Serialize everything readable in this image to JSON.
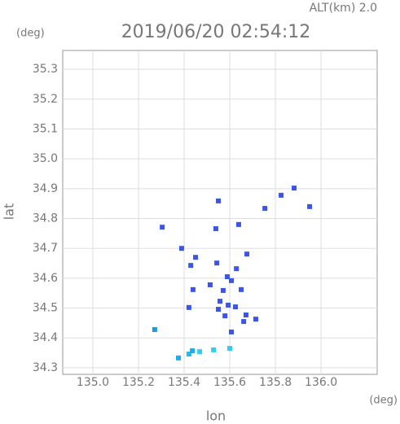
{
  "chart_data": {
    "type": "scatter",
    "title": "2019/06/20 02:54:12",
    "subtitle": "ALT(km) 2.0",
    "y_unit": "(deg)",
    "x_unit": "(deg)",
    "x_label": "lon",
    "y_label": "lat",
    "xlim": [
      134.868,
      136.246
    ],
    "ylim": [
      34.278,
      35.363
    ],
    "xticks": [
      {
        "value": 135,
        "label": "135.0"
      },
      135.2,
      135.4,
      135.6,
      135.8,
      {
        "value": 136,
        "label": "136.0"
      }
    ],
    "yticks": [
      34.3,
      34.4,
      34.5,
      34.6,
      34.7,
      34.8,
      34.9,
      {
        "value": 35,
        "label": "35.0"
      },
      35.1,
      35.2,
      35.3
    ],
    "grid": true,
    "x": [
      135.825,
      135.882,
      135.95,
      135.754,
      135.639,
      135.55,
      135.304,
      135.539,
      135.389,
      135.45,
      135.429,
      135.543,
      135.675,
      135.629,
      135.589,
      135.514,
      135.571,
      135.607,
      135.65,
      135.557,
      135.593,
      135.55,
      135.625,
      135.579,
      135.671,
      135.421,
      135.439,
      135.607,
      135.661,
      135.714,
      135.271,
      135.375,
      135.421,
      135.468,
      135.529,
      135.6,
      135.436
    ],
    "values": [
      34.878,
      34.902,
      34.84,
      34.834,
      34.78,
      34.859,
      34.771,
      34.766,
      34.7,
      34.67,
      34.643,
      34.651,
      34.681,
      34.632,
      34.605,
      34.578,
      34.559,
      34.592,
      34.562,
      34.523,
      34.51,
      34.496,
      34.504,
      34.474,
      34.477,
      34.502,
      34.562,
      34.42,
      34.455,
      34.463,
      34.428,
      34.333,
      34.346,
      34.354,
      34.36,
      34.365,
      34.357
    ],
    "colors": [
      "#3a55e8",
      "#3a55e8",
      "#3a55e8",
      "#3a55e8",
      "#3a55e8",
      "#3a55e8",
      "#3a55e8",
      "#3a55e8",
      "#3a55e8",
      "#3a55e8",
      "#3a55e8",
      "#3a55e8",
      "#3a55e8",
      "#3a55e8",
      "#3a55e8",
      "#3a55e8",
      "#3a55e8",
      "#3a55e8",
      "#3a55e8",
      "#3a55e8",
      "#3a55e8",
      "#3a55e8",
      "#3a55e8",
      "#3a55e8",
      "#3a55e8",
      "#3a55e8",
      "#3a55e8",
      "#3a55e8",
      "#3a55e8",
      "#3a55e8",
      "#2299dd",
      "#22aaee",
      "#22bbee",
      "#33ccee",
      "#33ccee",
      "#33ccee",
      "#22aaee"
    ]
  }
}
